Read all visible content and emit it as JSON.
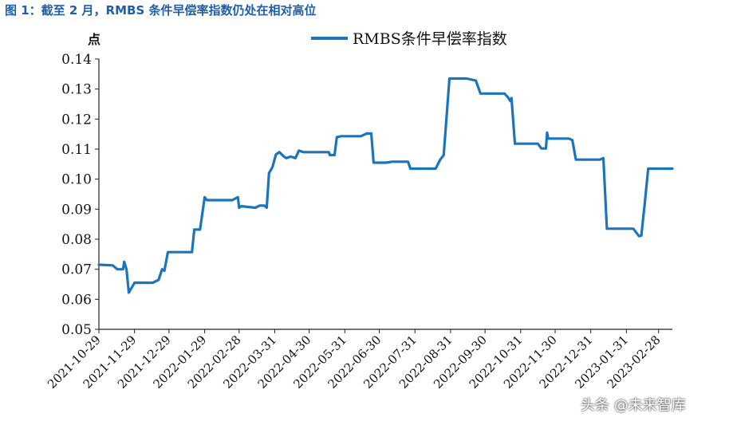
{
  "figure": {
    "title": "图 1：截至 2 月，RMBS 条件早偿率指数仍处在相对高位",
    "unit": "点",
    "watermark": "头条 @未来智库"
  },
  "chart_data": {
    "type": "line",
    "title": "",
    "xlabel": "",
    "ylabel": "点",
    "ylim": [
      0.05,
      0.14
    ],
    "yticks": [
      "0.05",
      "0.06",
      "0.07",
      "0.08",
      "0.09",
      "0.10",
      "0.11",
      "0.12",
      "0.13",
      "0.14"
    ],
    "xticks": [
      "2021-10-29",
      "2021-11-29",
      "2021-12-29",
      "2022-01-29",
      "2022-02-28",
      "2022-03-31",
      "2022-04-30",
      "2022-05-31",
      "2022-06-30",
      "2022-07-31",
      "2022-08-31",
      "2022-09-30",
      "2022-10-31",
      "2022-11-30",
      "2022-12-31",
      "2023-01-31",
      "2023-02-28"
    ],
    "xlim": [
      "2021-10-29",
      "2023-03-12"
    ],
    "legend_position": "top",
    "grid": false,
    "colors": {
      "series": "#1b75bb",
      "title": "#1f5fa8"
    },
    "series": [
      {
        "name": "RMBS条件早偿率指数",
        "points": [
          [
            "2021-10-29",
            0.0715
          ],
          [
            "2021-11-10",
            0.0713
          ],
          [
            "2021-11-14",
            0.07
          ],
          [
            "2021-11-19",
            0.07
          ],
          [
            "2021-11-20",
            0.0725
          ],
          [
            "2021-11-22",
            0.07
          ],
          [
            "2021-11-24",
            0.0622
          ],
          [
            "2021-11-29",
            0.0655
          ],
          [
            "2021-12-15",
            0.0655
          ],
          [
            "2021-12-20",
            0.0665
          ],
          [
            "2021-12-23",
            0.07
          ],
          [
            "2021-12-25",
            0.0695
          ],
          [
            "2021-12-28",
            0.0757
          ],
          [
            "2022-01-18",
            0.0757
          ],
          [
            "2022-01-20",
            0.0832
          ],
          [
            "2022-01-25",
            0.0832
          ],
          [
            "2022-01-29",
            0.094
          ],
          [
            "2022-01-31",
            0.093
          ],
          [
            "2022-02-22",
            0.093
          ],
          [
            "2022-02-27",
            0.094
          ],
          [
            "2022-02-28",
            0.0905
          ],
          [
            "2022-03-02",
            0.091
          ],
          [
            "2022-03-14",
            0.0905
          ],
          [
            "2022-03-18",
            0.0912
          ],
          [
            "2022-03-22",
            0.0912
          ],
          [
            "2022-03-24",
            0.0905
          ],
          [
            "2022-03-26",
            0.102
          ],
          [
            "2022-03-29",
            0.104
          ],
          [
            "2022-04-01",
            0.1082
          ],
          [
            "2022-04-04",
            0.109
          ],
          [
            "2022-04-08",
            0.1075
          ],
          [
            "2022-04-10",
            0.107
          ],
          [
            "2022-04-14",
            0.1075
          ],
          [
            "2022-04-18",
            0.107
          ],
          [
            "2022-04-21",
            0.1095
          ],
          [
            "2022-04-25",
            0.109
          ],
          [
            "2022-05-17",
            0.109
          ],
          [
            "2022-05-18",
            0.108
          ],
          [
            "2022-05-22",
            0.108
          ],
          [
            "2022-05-24",
            0.114
          ],
          [
            "2022-05-28",
            0.1143
          ],
          [
            "2022-06-14",
            0.1143
          ],
          [
            "2022-06-19",
            0.1152
          ],
          [
            "2022-06-23",
            0.1152
          ],
          [
            "2022-06-25",
            0.1055
          ],
          [
            "2022-07-06",
            0.1055
          ],
          [
            "2022-07-11",
            0.1058
          ],
          [
            "2022-07-25",
            0.1058
          ],
          [
            "2022-07-27",
            0.1035
          ],
          [
            "2022-08-18",
            0.1035
          ],
          [
            "2022-08-22",
            0.1065
          ],
          [
            "2022-08-25",
            0.108
          ],
          [
            "2022-08-30",
            0.1335
          ],
          [
            "2022-09-14",
            0.1335
          ],
          [
            "2022-09-22",
            0.1328
          ],
          [
            "2022-09-26",
            0.1285
          ],
          [
            "2022-10-17",
            0.1285
          ],
          [
            "2022-10-20",
            0.1272
          ],
          [
            "2022-10-22",
            0.126
          ],
          [
            "2022-10-23",
            0.127
          ],
          [
            "2022-10-26",
            0.1118
          ],
          [
            "2022-11-15",
            0.1118
          ],
          [
            "2022-11-18",
            0.1102
          ],
          [
            "2022-11-22",
            0.1102
          ],
          [
            "2022-11-23",
            0.1155
          ],
          [
            "2022-11-24",
            0.1135
          ],
          [
            "2022-12-12",
            0.1135
          ],
          [
            "2022-12-15",
            0.113
          ],
          [
            "2022-12-18",
            0.1065
          ],
          [
            "2023-01-08",
            0.1065
          ],
          [
            "2023-01-11",
            0.107
          ],
          [
            "2023-01-14",
            0.0835
          ],
          [
            "2023-02-06",
            0.0835
          ],
          [
            "2023-02-11",
            0.081
          ],
          [
            "2023-02-13",
            0.0812
          ],
          [
            "2023-02-16",
            0.092
          ],
          [
            "2023-02-19",
            0.1035
          ],
          [
            "2023-03-12",
            0.1035
          ]
        ]
      }
    ]
  }
}
